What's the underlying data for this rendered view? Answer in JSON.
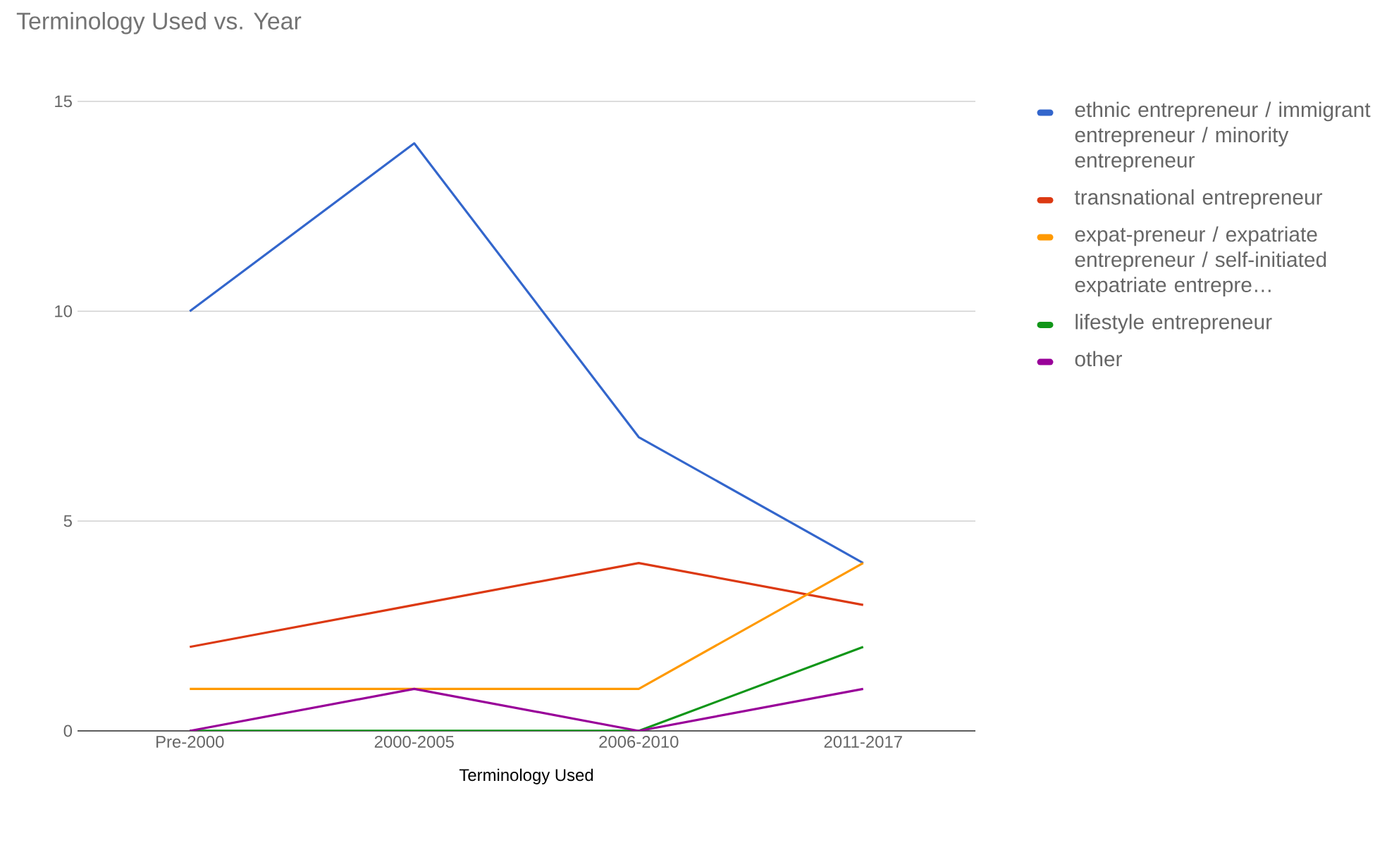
{
  "chart_data": {
    "type": "line",
    "title": "Terminology Used vs. Year",
    "xlabel": "Terminology Used",
    "categories": [
      "Pre-2000",
      "2000-2005",
      "2006-2010",
      "2011-2017"
    ],
    "ylim": [
      0,
      15
    ],
    "yticks": [
      0,
      5,
      10,
      15
    ],
    "grid": "y",
    "legend": "right",
    "marker": "none",
    "line_style": "solid",
    "series": [
      {
        "name": "ethnic entrepreneur / immigrant entrepreneur / minority entrepreneur",
        "color": "#3366cc",
        "values": [
          10,
          14,
          7,
          4
        ]
      },
      {
        "name": "transnational entrepreneur",
        "color": "#dc3912",
        "values": [
          2,
          3,
          4,
          3
        ]
      },
      {
        "name": "expat-preneur / expatriate entrepreneur / self-initiated expatriate entrepre…",
        "color": "#ff9900",
        "values": [
          1,
          1,
          1,
          4
        ]
      },
      {
        "name": "lifestyle entrepreneur",
        "color": "#109618",
        "values": [
          0,
          0,
          0,
          2
        ]
      },
      {
        "name": "other",
        "color": "#990099",
        "values": [
          0,
          1,
          0,
          1
        ]
      }
    ]
  }
}
